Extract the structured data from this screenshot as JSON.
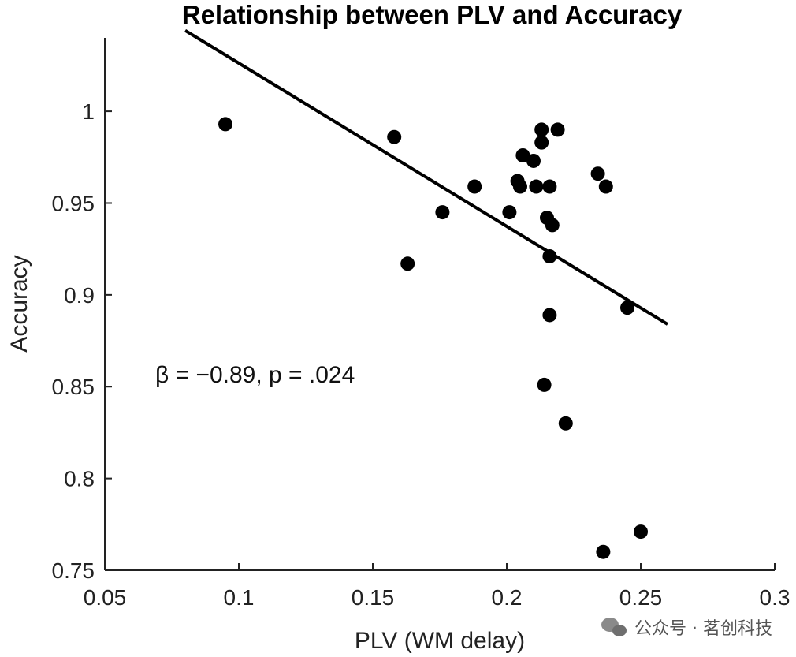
{
  "chart_data": {
    "type": "scatter",
    "title": "Relationship between PLV and Accuracy",
    "xlabel": "PLV (WM delay)",
    "ylabel": "Accuracy",
    "xlim": [
      0.05,
      0.3
    ],
    "ylim": [
      0.75,
      1.04
    ],
    "xticks": [
      0.05,
      0.1,
      0.15,
      0.2,
      0.25,
      0.3
    ],
    "xtick_labels": [
      "0.05",
      "0.1",
      "0.15",
      "0.2",
      "0.25",
      "0.3"
    ],
    "yticks": [
      0.75,
      0.8,
      0.85,
      0.9,
      0.95,
      1.0
    ],
    "ytick_labels": [
      "0.75",
      "0.8",
      "0.85",
      "0.9",
      "0.95",
      "1"
    ],
    "grid": false,
    "points": [
      {
        "x": 0.095,
        "y": 0.993
      },
      {
        "x": 0.158,
        "y": 0.986
      },
      {
        "x": 0.163,
        "y": 0.917
      },
      {
        "x": 0.176,
        "y": 0.945
      },
      {
        "x": 0.188,
        "y": 0.959
      },
      {
        "x": 0.201,
        "y": 0.945
      },
      {
        "x": 0.204,
        "y": 0.962
      },
      {
        "x": 0.205,
        "y": 0.959
      },
      {
        "x": 0.206,
        "y": 0.976
      },
      {
        "x": 0.21,
        "y": 0.973
      },
      {
        "x": 0.211,
        "y": 0.959
      },
      {
        "x": 0.213,
        "y": 0.99
      },
      {
        "x": 0.213,
        "y": 0.983
      },
      {
        "x": 0.214,
        "y": 0.851
      },
      {
        "x": 0.215,
        "y": 0.942
      },
      {
        "x": 0.216,
        "y": 0.959
      },
      {
        "x": 0.216,
        "y": 0.921
      },
      {
        "x": 0.216,
        "y": 0.889
      },
      {
        "x": 0.217,
        "y": 0.938
      },
      {
        "x": 0.219,
        "y": 0.99
      },
      {
        "x": 0.222,
        "y": 0.83
      },
      {
        "x": 0.234,
        "y": 0.966
      },
      {
        "x": 0.236,
        "y": 0.76
      },
      {
        "x": 0.237,
        "y": 0.959
      },
      {
        "x": 0.245,
        "y": 0.893
      },
      {
        "x": 0.25,
        "y": 0.771
      }
    ],
    "fit_line": {
      "x1": 0.08,
      "y1": 1.044,
      "x2": 0.26,
      "y2": 0.884
    },
    "annotation": "β = −0.89, p = .024"
  },
  "watermark": {
    "text": "公众号 · 茗创科技",
    "icon": "wechat-icon"
  }
}
